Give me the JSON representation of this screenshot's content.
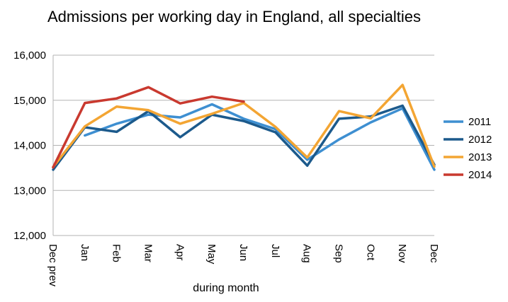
{
  "chart_data": {
    "type": "line",
    "title": "Admissions per working day in England, all specialties",
    "xlabel": "during month",
    "ylabel": "",
    "categories": [
      "Dec prev",
      "Jan",
      "Feb",
      "Mar",
      "Apr",
      "May",
      "Jun",
      "Jul",
      "Aug",
      "Sep",
      "Oct",
      "Nov",
      "Dec"
    ],
    "ylim": [
      12000,
      16000
    ],
    "yticks": [
      12000,
      13000,
      14000,
      15000,
      16000
    ],
    "ytick_labels": [
      "12,000",
      "13,000",
      "14,000",
      "15,000",
      "16,000"
    ],
    "grid": true,
    "legend_position": "right",
    "series": [
      {
        "name": "2011",
        "color": "#3e8fd1",
        "values": [
          null,
          14220,
          14480,
          14680,
          14620,
          14910,
          14590,
          14360,
          13680,
          14130,
          14510,
          14820,
          13460
        ]
      },
      {
        "name": "2012",
        "color": "#1c5a8c",
        "values": [
          13460,
          14400,
          14300,
          14760,
          14180,
          14680,
          14540,
          14290,
          13550,
          14590,
          14640,
          14880,
          13570
        ]
      },
      {
        "name": "2013",
        "color": "#f3a533",
        "values": [
          13520,
          14420,
          14860,
          14780,
          14480,
          14700,
          14940,
          14410,
          13730,
          14760,
          14600,
          15340,
          13530
        ]
      },
      {
        "name": "2014",
        "color": "#c9392f",
        "values": [
          13510,
          14940,
          15040,
          15290,
          14930,
          15080,
          14970,
          null,
          null,
          null,
          null,
          null,
          null
        ]
      }
    ]
  }
}
